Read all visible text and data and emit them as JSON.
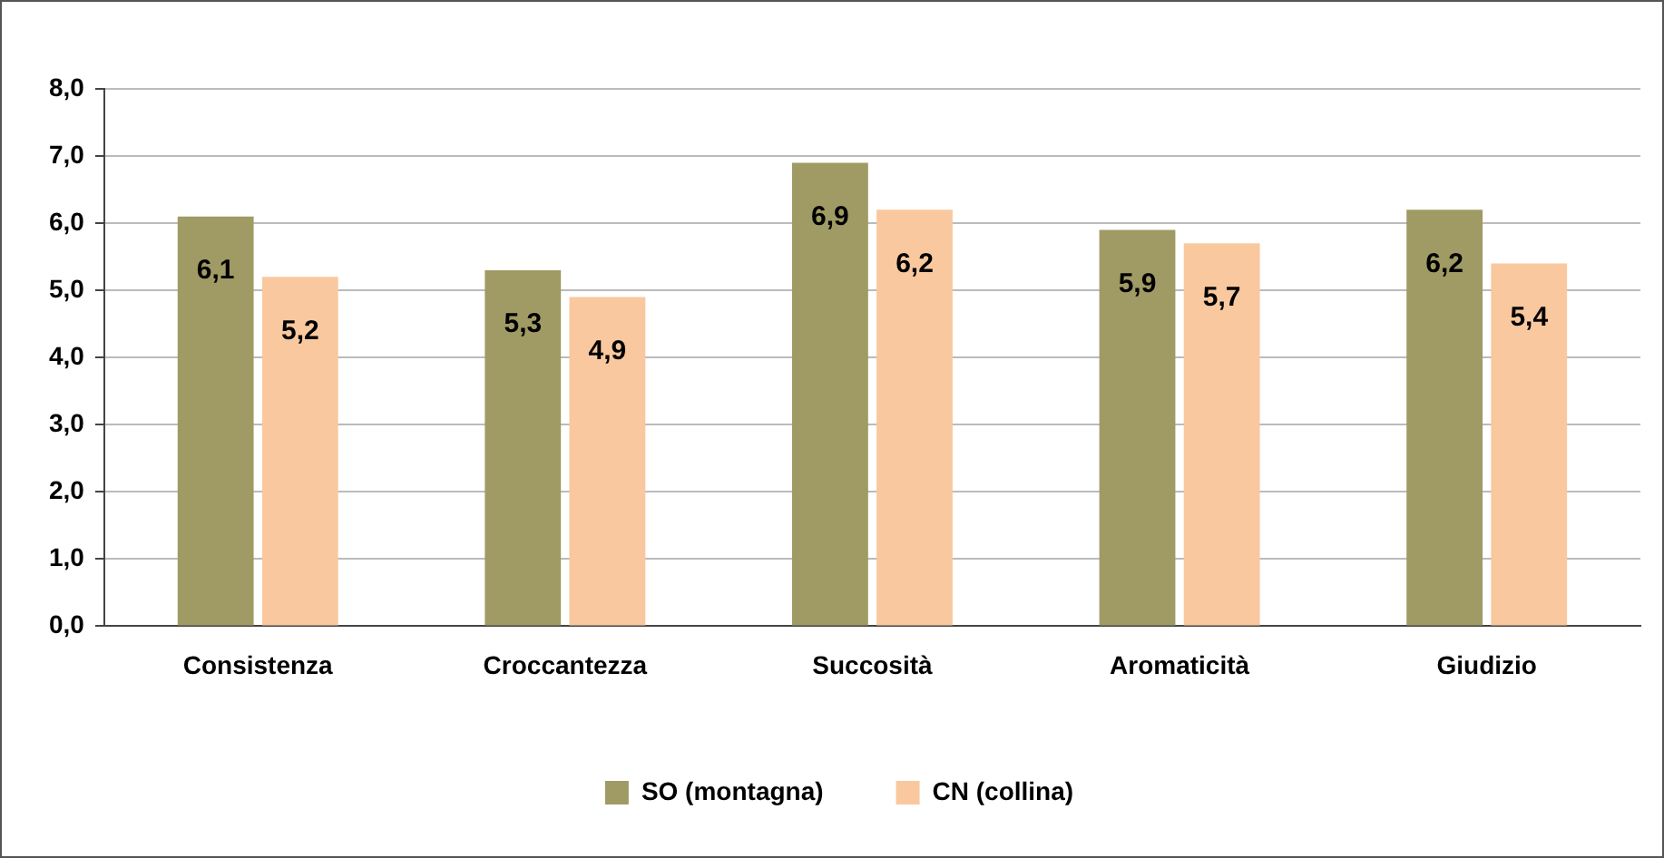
{
  "chart_data": {
    "type": "bar",
    "categories": [
      "Consistenza",
      "Croccantezza",
      "Succosità",
      "Aromaticità",
      "Giudizio"
    ],
    "series": [
      {
        "name": "SO (montagna)",
        "color": "#a09a64",
        "values": [
          6.1,
          5.3,
          6.9,
          5.9,
          6.2
        ],
        "value_labels": [
          "6,1",
          "5,3",
          "6,9",
          "5,9",
          "6,2"
        ]
      },
      {
        "name": "CN (collina)",
        "color": "#f9c89e",
        "values": [
          5.2,
          4.9,
          6.2,
          5.7,
          5.4
        ],
        "value_labels": [
          "5,2",
          "4,9",
          "6,2",
          "5,7",
          "5,4"
        ]
      }
    ],
    "ylim": [
      0,
      8
    ],
    "yticks": [
      {
        "value": 0,
        "label": "0,0"
      },
      {
        "value": 1,
        "label": "1,0"
      },
      {
        "value": 2,
        "label": "2,0"
      },
      {
        "value": 3,
        "label": "3,0"
      },
      {
        "value": 4,
        "label": "4,0"
      },
      {
        "value": 5,
        "label": "5,0"
      },
      {
        "value": 6,
        "label": "6,0"
      },
      {
        "value": 7,
        "label": "7,0"
      },
      {
        "value": 8,
        "label": "8,0"
      }
    ],
    "grid": "y",
    "legend": "bottom"
  }
}
